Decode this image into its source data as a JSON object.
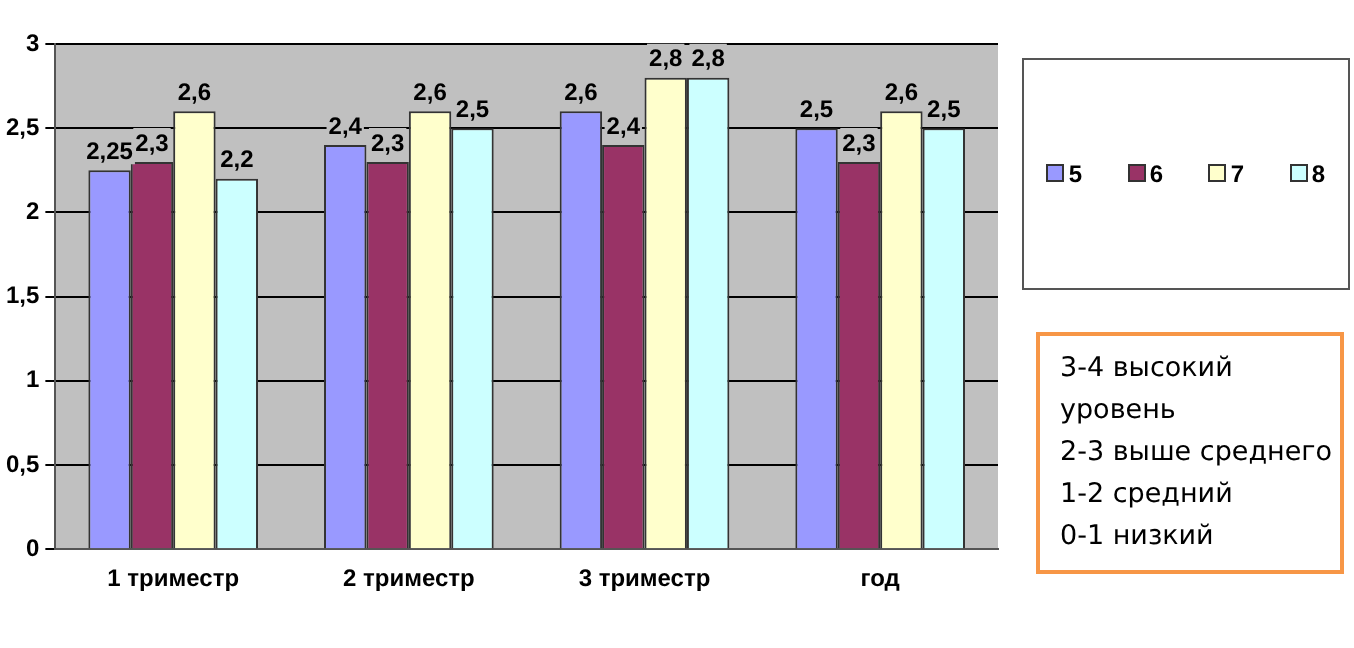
{
  "chart_data": {
    "type": "bar",
    "categories": [
      "1 триместр",
      "2 триместр",
      "3 триместр",
      "год"
    ],
    "series": [
      {
        "name": "5",
        "color": "#9999ff",
        "values": [
          2.25,
          2.4,
          2.6,
          2.5
        ],
        "value_labels": [
          "2,25",
          "2,4",
          "2,6",
          "2,5"
        ]
      },
      {
        "name": "6",
        "color": "#993366",
        "values": [
          2.3,
          2.3,
          2.4,
          2.3
        ],
        "value_labels": [
          "2,3",
          "2,3",
          "2,4",
          "2,3"
        ]
      },
      {
        "name": "7",
        "color": "#ffffcc",
        "values": [
          2.6,
          2.6,
          2.8,
          2.6
        ],
        "value_labels": [
          "2,6",
          "2,6",
          "2,8",
          "2,6"
        ]
      },
      {
        "name": "8",
        "color": "#ccffff",
        "values": [
          2.2,
          2.5,
          2.8,
          2.5
        ],
        "value_labels": [
          "2,2",
          "2,5",
          "2,8",
          "2,5"
        ]
      }
    ],
    "ylim": [
      0,
      3
    ],
    "yticks": [
      {
        "value": 0,
        "label": "0"
      },
      {
        "value": 0.5,
        "label": "0,5"
      },
      {
        "value": 1,
        "label": "1"
      },
      {
        "value": 1.5,
        "label": "1,5"
      },
      {
        "value": 2,
        "label": "2"
      },
      {
        "value": 2.5,
        "label": "2,5"
      },
      {
        "value": 3,
        "label": "3"
      }
    ],
    "grid": "y",
    "legend": "right",
    "annotations": [
      "3-4 высокий уровень",
      "2-3 выше среднего",
      "1-2 средний",
      "0-1 низкий"
    ]
  }
}
